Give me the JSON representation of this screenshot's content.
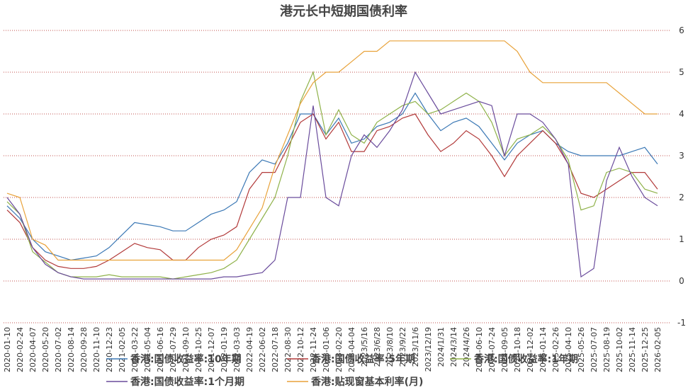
{
  "chart_data": {
    "type": "line",
    "title": "港元长中短期国债利率",
    "categories": [
      "2020-01-10",
      "2020-02-24",
      "2020-04-07",
      "2020-05-20",
      "2020-07-02",
      "2020-08-14",
      "2020-09-28",
      "2020-11-10",
      "2020-12-23",
      "2021-02-05",
      "2021-03-22",
      "2021-05-04",
      "2021-06-16",
      "2021-07-29",
      "2021-09-10",
      "2021-10-25",
      "2021-12-07",
      "2022-01-19",
      "2022-03-03",
      "2022-04-19",
      "2022-06-02",
      "2022-07-18",
      "2022-08-30",
      "2022-10-12",
      "2022-11-24",
      "2023-01-06",
      "2023-02-20",
      "2023-04-04",
      "2023/5/16",
      "2023/6/28",
      "2023/8/10",
      "2023/9/22",
      "2023/11/6",
      "2023/12/19",
      "2024/1/31",
      "2024/3/14",
      "2024/4/26",
      "2024-06-10",
      "2024-07-24",
      "2024-09-05",
      "2024-10-18",
      "2024-12-02",
      "2025-01-14",
      "2025-02-26",
      "2025-04-10",
      "2025-05-26",
      "2025-07-07",
      "2025-08-19",
      "2025-10-02",
      "2025-11-14",
      "2025-12-25",
      "2026-02-05"
    ],
    "series": [
      {
        "name": "香港:国债收益率:10年期",
        "color": "#3b78b5",
        "values": [
          1.8,
          1.5,
          1.0,
          0.7,
          0.6,
          0.5,
          0.55,
          0.6,
          0.8,
          1.1,
          1.4,
          1.35,
          1.3,
          1.2,
          1.2,
          1.4,
          1.6,
          1.7,
          1.9,
          2.6,
          2.9,
          2.8,
          3.3,
          4.0,
          4.0,
          3.5,
          3.9,
          3.3,
          3.4,
          3.7,
          3.8,
          4.0,
          4.5,
          4.0,
          3.6,
          3.8,
          3.9,
          3.7,
          3.3,
          2.9,
          3.3,
          3.5,
          3.6,
          3.3,
          3.1,
          3.0,
          3.0,
          3.0,
          3.0,
          3.1,
          3.2,
          2.8
        ]
      },
      {
        "name": "香港:国债收益率:5年期",
        "color": "#b23a3a",
        "values": [
          1.7,
          1.4,
          0.8,
          0.5,
          0.35,
          0.3,
          0.3,
          0.35,
          0.5,
          0.7,
          0.9,
          0.8,
          0.75,
          0.5,
          0.5,
          0.8,
          1.0,
          1.1,
          1.3,
          2.2,
          2.6,
          2.6,
          3.2,
          3.8,
          4.0,
          3.4,
          3.8,
          3.1,
          3.1,
          3.6,
          3.7,
          3.9,
          4.0,
          3.5,
          3.1,
          3.3,
          3.6,
          3.4,
          3.0,
          2.5,
          3.0,
          3.3,
          3.6,
          3.3,
          2.8,
          2.1,
          2.0,
          2.2,
          2.4,
          2.6,
          2.6,
          2.2
        ]
      },
      {
        "name": "香港:国债收益率:1年期",
        "color": "#8fb24a",
        "values": [
          1.9,
          1.6,
          0.7,
          0.45,
          0.2,
          0.1,
          0.1,
          0.1,
          0.15,
          0.1,
          0.1,
          0.1,
          0.1,
          0.05,
          0.1,
          0.15,
          0.2,
          0.3,
          0.5,
          1.0,
          1.5,
          2.0,
          3.0,
          4.3,
          5.0,
          3.5,
          4.1,
          3.5,
          3.3,
          3.8,
          4.0,
          4.2,
          4.3,
          4.0,
          4.1,
          4.3,
          4.5,
          4.3,
          3.8,
          3.0,
          3.4,
          3.5,
          3.7,
          3.4,
          2.9,
          1.7,
          1.8,
          2.6,
          2.7,
          2.6,
          2.2,
          2.1
        ]
      },
      {
        "name": "香港:国债收益率:1个月期",
        "color": "#6a4c9c",
        "values": [
          2.0,
          1.6,
          0.8,
          0.4,
          0.2,
          0.1,
          0.05,
          0.05,
          0.05,
          0.05,
          0.05,
          0.05,
          0.05,
          0.05,
          0.05,
          0.05,
          0.05,
          0.1,
          0.1,
          0.15,
          0.2,
          0.5,
          2.0,
          2.0,
          4.2,
          2.0,
          1.8,
          3.0,
          3.5,
          3.2,
          3.6,
          4.1,
          5.0,
          4.5,
          4.0,
          4.1,
          4.2,
          4.3,
          4.2,
          3.0,
          4.0,
          4.0,
          3.8,
          3.4,
          2.8,
          0.1,
          0.3,
          2.4,
          3.2,
          2.5,
          2.0,
          1.8
        ]
      },
      {
        "name": "香港:贴现窗基本利率(月)",
        "color": "#e8a23a",
        "values": [
          2.1,
          2.0,
          1.0,
          0.86,
          0.5,
          0.5,
          0.5,
          0.5,
          0.5,
          0.5,
          0.5,
          0.5,
          0.5,
          0.5,
          0.5,
          0.5,
          0.5,
          0.5,
          0.75,
          1.25,
          1.75,
          2.75,
          3.5,
          4.25,
          4.75,
          5.0,
          5.0,
          5.25,
          5.5,
          5.5,
          5.75,
          5.75,
          5.75,
          5.75,
          5.75,
          5.75,
          5.75,
          5.75,
          5.75,
          5.75,
          5.5,
          5.0,
          4.75,
          4.75,
          4.75,
          4.75,
          4.75,
          4.75,
          4.5,
          4.25,
          4.0,
          4.0
        ]
      }
    ],
    "ylim": [
      -1,
      6
    ],
    "yticks": [
      -1,
      0,
      1,
      2,
      3,
      4,
      5,
      6
    ],
    "grid": true
  }
}
